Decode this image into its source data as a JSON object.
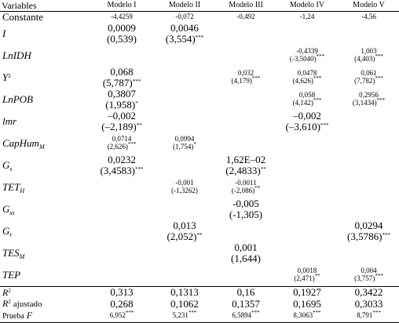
{
  "table": {
    "header": [
      "Variables",
      "Modelo I",
      "Modelo II",
      "Modelo III",
      "Modelo IV",
      "Modelo V"
    ],
    "rows": [
      {
        "label": {
          "text": "Constante",
          "italic": false
        },
        "cells": [
          {
            "coef": "-4,4259"
          },
          {
            "coef": "-0,072"
          },
          {
            "coef": "-0,492"
          },
          {
            "coef": "-1,24"
          },
          {
            "coef": "-4,56"
          }
        ]
      },
      {
        "label": {
          "text": "I",
          "italic": true
        },
        "cells": [
          {
            "coef": "0,0009",
            "t": "(0,539)"
          },
          {
            "coef": "0,0046",
            "t": "(3,554)",
            "sig": "***"
          },
          null,
          null,
          null
        ]
      },
      {
        "label": {
          "text": "LnIDH",
          "italic": true
        },
        "cells": [
          null,
          null,
          null,
          {
            "coef": "-0,4339",
            "t": "(-3,5040)",
            "sig": "***"
          },
          {
            "coef": "1,003",
            "t": "(4,403)",
            "sig": "***"
          }
        ]
      },
      {
        "label": {
          "text": "Y",
          "sup": "2",
          "italic": true
        },
        "cells": [
          {
            "coef": "0,068",
            "t": "(5,787)",
            "sig": "***"
          },
          null,
          {
            "coef": "0,032",
            "t": "(4,179)",
            "sig": "***"
          },
          {
            "coef": "0,0478",
            "t": "(4,626)",
            "sig": "***"
          },
          {
            "coef": "0,061",
            "t": "(7,782)",
            "sig": "***"
          }
        ]
      },
      {
        "label": {
          "text": "LnPOB",
          "italic": true
        },
        "cells": [
          {
            "coef": "0,3807",
            "t": "(1,958)",
            "sig": "*"
          },
          null,
          null,
          {
            "coef": "0,058",
            "t": "(4,142)",
            "sig": "***"
          },
          {
            "coef": "0,2956",
            "t": "(3,1434)",
            "sig": "***"
          }
        ]
      },
      {
        "label": {
          "text": "lmr",
          "italic": true
        },
        "cells": [
          {
            "coef": "–0,002",
            "t": "(–2,189)",
            "sig": "**"
          },
          null,
          null,
          {
            "coef": "–0,002",
            "t": "(–3,610)",
            "sig": "***"
          },
          null
        ]
      },
      {
        "label": {
          "text": "CapHum",
          "sub": "M",
          "italic": true
        },
        "cells": [
          {
            "coef": "0,0714",
            "t": "(2,626)",
            "sig": "***"
          },
          {
            "coef": "0,0994",
            "t": "(1,754)",
            "sig": "*"
          },
          null,
          null,
          null
        ]
      },
      {
        "label": {
          "text": "G",
          "sub": "s",
          "italic": true
        },
        "cells": [
          {
            "coef": "0,0232",
            "t": "(3,4583)",
            "sig": "***"
          },
          null,
          {
            "coef": "1,62E–02",
            "t": "(2,4833)",
            "sig": "**"
          },
          null,
          null
        ]
      },
      {
        "label": {
          "text": "TET",
          "sub": "H",
          "italic": true
        },
        "cells": [
          null,
          {
            "coef": "-0,001",
            "t": "(-1,3262)"
          },
          {
            "coef": "-0,0011",
            "t": "(-2,086)",
            "sig": "**"
          },
          null,
          null
        ]
      },
      {
        "label": {
          "text": "G",
          "sub": "ss",
          "italic": true
        },
        "cells": [
          null,
          null,
          {
            "coef": "-0,005",
            "t": "(-1,305)"
          },
          null,
          null
        ]
      },
      {
        "label": {
          "text": "G",
          "sub": "r",
          "italic": true
        },
        "cells": [
          null,
          {
            "coef": "0,013",
            "t": "(2,052)",
            "sig": "**"
          },
          null,
          null,
          {
            "coef": "0,0294",
            "t": "(3,5786)",
            "sig": "***"
          }
        ]
      },
      {
        "label": {
          "text": "TES",
          "sub": "M",
          "italic": true
        },
        "cells": [
          null,
          null,
          {
            "coef": "0,001",
            "t": "(1,644)"
          },
          null,
          null
        ]
      },
      {
        "label": {
          "text": "TEP",
          "italic": true
        },
        "cells": [
          null,
          null,
          null,
          {
            "coef": "0,0018",
            "t": "(2,471)",
            "sig": "**"
          },
          {
            "coef": "0,004",
            "t": "(3,757)",
            "sig": "***"
          }
        ]
      },
      {
        "label": {
          "text": "R",
          "sup": "2",
          "italic": true
        },
        "cells": [
          {
            "coef": "0,313"
          },
          {
            "coef": "0,1313"
          },
          {
            "coef": "0,16"
          },
          {
            "coef": "0,1927"
          },
          {
            "coef": "0,3422"
          }
        ]
      },
      {
        "label": {
          "text": "R",
          "sup": "2",
          "after": "ajustado",
          "italic": true
        },
        "cells": [
          {
            "coef": "0,268"
          },
          {
            "coef": "0,1062"
          },
          {
            "coef": "0,1357"
          },
          {
            "coef": "0,1695"
          },
          {
            "coef": "0,3033"
          }
        ]
      },
      {
        "label": {
          "text": "Prueba",
          "em": "F",
          "italic": false
        },
        "cells": [
          {
            "coef": "6,952",
            "sig": "***"
          },
          {
            "coef": "5,231",
            "sig": "***"
          },
          {
            "coef": "6,5894",
            "sig": "***"
          },
          {
            "coef": "8,3063",
            "sig": "***"
          },
          {
            "coef": "8,791",
            "sig": "***"
          }
        ]
      }
    ]
  }
}
